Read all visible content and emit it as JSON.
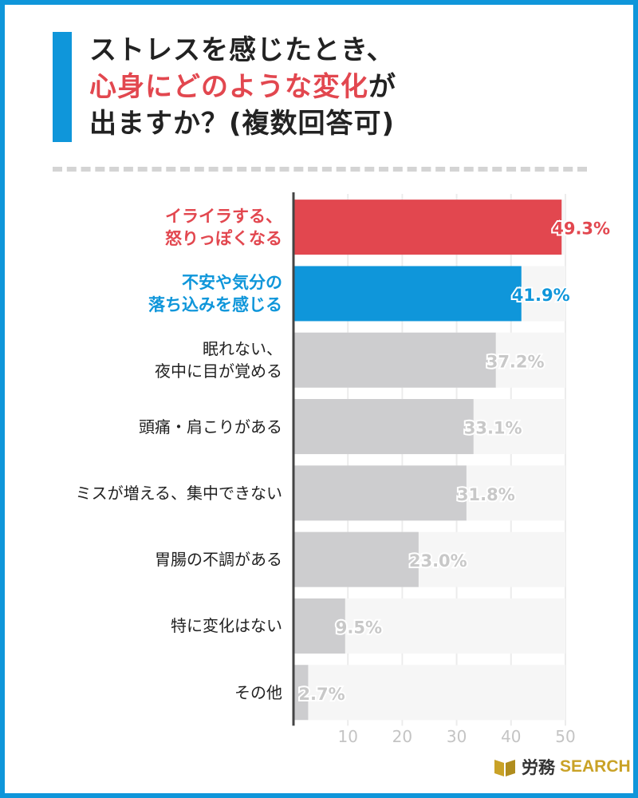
{
  "title": {
    "line1": "ストレスを感じたとき、",
    "line2_accent": "心身にどのような変化",
    "line2_rest": "が",
    "line3": "出ますか？(複数回答可)"
  },
  "colors": {
    "frame": "#0f96da",
    "highlight_red": "#e2474f",
    "highlight_blue": "#0f96da",
    "bar_gray": "#cdcdcf",
    "label_gray": "#c8c8c8"
  },
  "chart_data": {
    "type": "bar",
    "orientation": "horizontal",
    "categories": [
      "イライラする、\n怒りっぽくなる",
      "不安や気分の\n落ち込みを感じる",
      "眠れない、\n夜中に目が覚める",
      "頭痛・肩こりがある",
      "ミスが増える、集中できない",
      "胃腸の不調がある",
      "特に変化はない",
      "その他"
    ],
    "values": [
      49.3,
      41.9,
      37.2,
      33.1,
      31.8,
      23.0,
      9.5,
      2.7
    ],
    "value_labels": [
      "49.3%",
      "41.9%",
      "37.2%",
      "33.1%",
      "31.8%",
      "23.0%",
      "9.5%",
      "2.7%"
    ],
    "highlight": [
      "red",
      "blue",
      null,
      null,
      null,
      null,
      null,
      null
    ],
    "x_ticks": [
      "10",
      "20",
      "30",
      "40",
      "50"
    ],
    "xlim": [
      0,
      50
    ],
    "grid": true
  },
  "logo": {
    "text_jp": "労務",
    "text_en": "SEARCH"
  }
}
